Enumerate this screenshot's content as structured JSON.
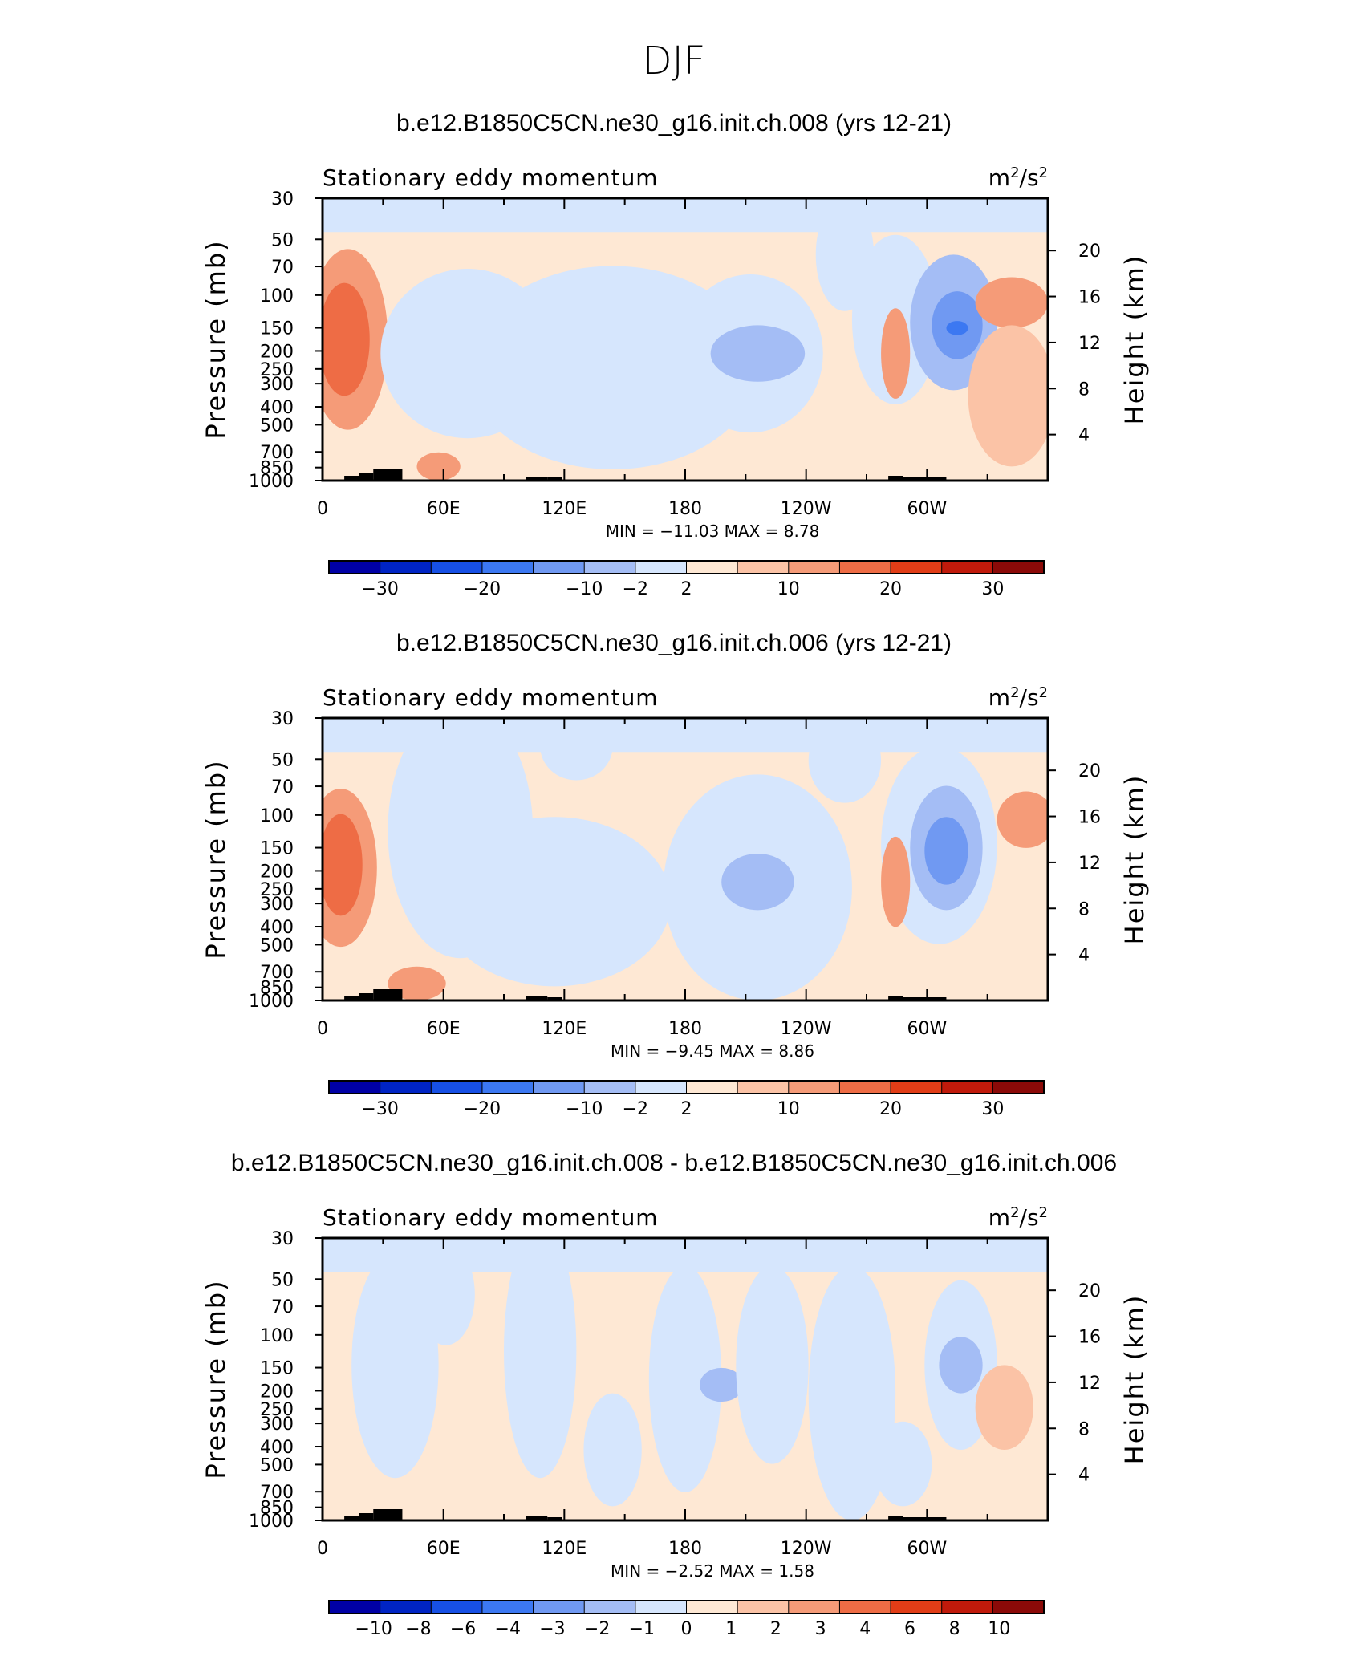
{
  "season_title": "DJF",
  "colors": {
    "minus_30_plus": "#0000a5",
    "c1": "#0024c4",
    "c2": "#1750e5",
    "c3": "#3c78f2",
    "c4": "#7099f2",
    "c5": "#a4bdf5",
    "c6": "#d6e6fd",
    "c7": "#fee8d4",
    "c8": "#fbc3a6",
    "c9": "#f59b78",
    "c10": "#ee6c45",
    "c11": "#e13d17",
    "c12": "#c01a0b",
    "c13": "#8b0a08",
    "frame": "#000000"
  },
  "panels": [
    {
      "title": "b.e12.B1850C5CN.ne30_g16.init.ch.008 (yrs 12-21)",
      "left_label": "Stationary eddy momentum",
      "units_base": "m",
      "units_exp1": "2",
      "units_mid": "/s",
      "units_exp2": "2",
      "min_max": "MIN =  −11.03   MAX =     8.78",
      "colorbar_labels": [
        "−30",
        "−20",
        "−10",
        "−2",
        "2",
        "10",
        "20",
        "30"
      ]
    },
    {
      "title": "b.e12.B1850C5CN.ne30_g16.init.ch.006 (yrs 12-21)",
      "left_label": "Stationary eddy momentum",
      "units_base": "m",
      "units_exp1": "2",
      "units_mid": "/s",
      "units_exp2": "2",
      "min_max": "MIN =    −9.45   MAX =     8.86",
      "colorbar_labels": [
        "−30",
        "−20",
        "−10",
        "−2",
        "2",
        "10",
        "20",
        "30"
      ]
    },
    {
      "title": "b.e12.B1850C5CN.ne30_g16.init.ch.008 - b.e12.B1850C5CN.ne30_g16.init.ch.006",
      "left_label": "Stationary eddy momentum",
      "units_base": "m",
      "units_exp1": "2",
      "units_mid": "/s",
      "units_exp2": "2",
      "min_max": "MIN =    −2.52   MAX =     1.58",
      "colorbar_labels": [
        "−10",
        "−8",
        "−6",
        "−4",
        "−3",
        "−2",
        "−1",
        "0",
        "1",
        "2",
        "3",
        "4",
        "6",
        "8",
        "10"
      ]
    }
  ],
  "chart_data": {
    "type": "heatmap",
    "title": "DJF",
    "xlabel": "",
    "ylabel": "Pressure (mb)",
    "y2label": "Height (km)",
    "x_ticks": [
      "0",
      "60E",
      "120E",
      "180",
      "120W",
      "60W"
    ],
    "x_tick_lons": [
      0,
      60,
      120,
      180,
      240,
      300
    ],
    "x_range": [
      0,
      360
    ],
    "y_ticks": [
      "30",
      "50",
      "70",
      "100",
      "150",
      "200",
      "250",
      "300",
      "400",
      "500",
      "700",
      "850",
      "1000"
    ],
    "y_tick_values": [
      30,
      50,
      70,
      100,
      150,
      200,
      250,
      300,
      400,
      500,
      700,
      850,
      1000
    ],
    "y_range": [
      1000,
      30
    ],
    "y2_ticks": [
      "20",
      "16",
      "12",
      "8",
      "4"
    ],
    "y2_tick_values": [
      20,
      16,
      12,
      8,
      4
    ],
    "units": "m2/s2",
    "series": [
      {
        "name": "b.e12.B1850C5CN.ne30_g16.init.ch.008 (yrs 12-21)",
        "min": -11.03,
        "max": 8.78,
        "contour_levels": [
          -30,
          -25,
          -20,
          -15,
          -10,
          -5,
          -2,
          0,
          2,
          5,
          10,
          15,
          20,
          25,
          30
        ],
        "colorbar_labels": [
          "-30",
          "-20",
          "-10",
          "-2",
          "2",
          "10",
          "20",
          "30"
        ]
      },
      {
        "name": "b.e12.B1850C5CN.ne30_g16.init.ch.006 (yrs 12-21)",
        "min": -9.45,
        "max": 8.86,
        "contour_levels": [
          -30,
          -25,
          -20,
          -15,
          -10,
          -5,
          -2,
          0,
          2,
          5,
          10,
          15,
          20,
          25,
          30
        ],
        "colorbar_labels": [
          "-30",
          "-20",
          "-10",
          "-2",
          "2",
          "10",
          "20",
          "30"
        ]
      },
      {
        "name": "b.e12.B1850C5CN.ne30_g16.init.ch.008 - b.e12.B1850C5CN.ne30_g16.init.ch.006",
        "min": -2.52,
        "max": 1.58,
        "contour_levels": [
          -10,
          -8,
          -6,
          -4,
          -3,
          -2,
          -1,
          0,
          1,
          2,
          3,
          4,
          6,
          8,
          10
        ],
        "colorbar_labels": [
          "-10",
          "-8",
          "-6",
          "-4",
          "-3",
          "-2",
          "-1",
          "0",
          "1",
          "2",
          "3",
          "4",
          "6",
          "8",
          "10"
        ]
      }
    ]
  }
}
